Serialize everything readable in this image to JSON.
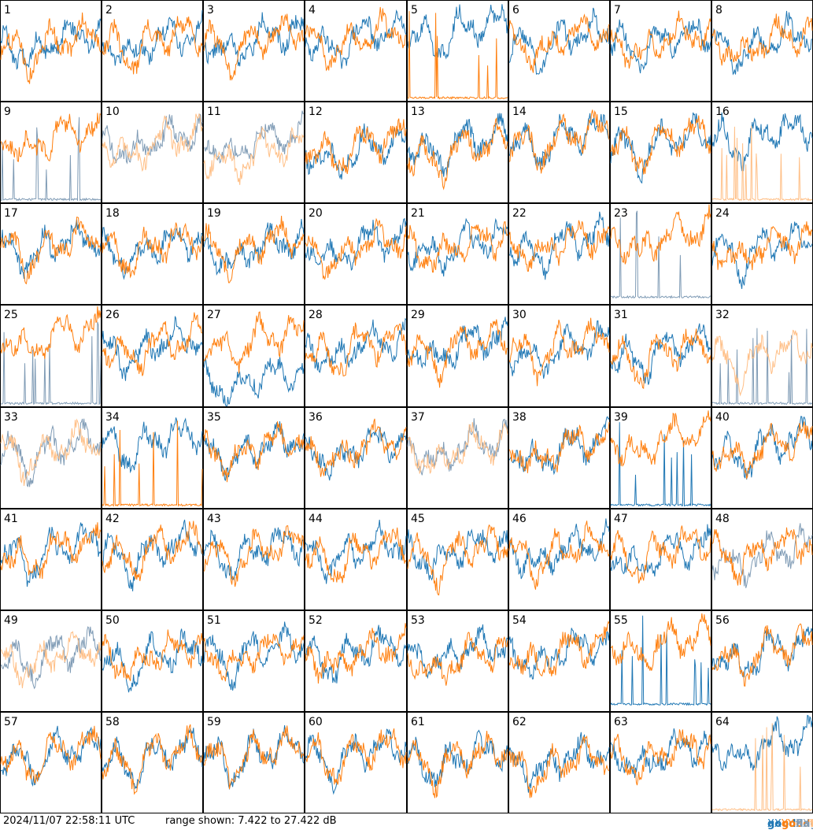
{
  "timestamp": "2024/11/07 22:58:11 UTC",
  "range_text": "range shown: 7.422 to 27.422 dB",
  "legend": [
    {
      "state": "good",
      "pol": "XX",
      "color": "#1f77b4"
    },
    {
      "state": "good",
      "pol": "YY",
      "color": "#ff7f0e"
    },
    {
      "state": "flagged",
      "pol": "XX",
      "color": "#7f9bb5"
    },
    {
      "state": "flagged",
      "pol": "YY",
      "color": "#ffbf86"
    }
  ],
  "chart_data": {
    "type": "line",
    "grid": {
      "rows": 8,
      "cols": 8
    },
    "ylim_db": [
      7.422,
      27.422
    ],
    "series_styles": {
      "good_xx": "#1f77b4",
      "good_yy": "#ff7f0e",
      "flagged_xx": "#7f9bb5",
      "flagged_yy": "#ffbf86"
    },
    "panels": [
      {
        "id": 1,
        "xx": "good",
        "yy": "good",
        "xx_level": 0.62,
        "yy_level": 0.6
      },
      {
        "id": 2,
        "xx": "good",
        "yy": "good",
        "xx_level": 0.62,
        "yy_level": 0.63
      },
      {
        "id": 3,
        "xx": "good",
        "yy": "good",
        "xx_level": 0.64,
        "yy_level": 0.63
      },
      {
        "id": 4,
        "xx": "good",
        "yy": "good",
        "xx_level": 0.66,
        "yy_level": 0.66
      },
      {
        "id": 5,
        "xx": "good",
        "yy": "good",
        "xx_level": 0.74,
        "yy_level": 0.02,
        "yy_spiky": true
      },
      {
        "id": 6,
        "xx": "good",
        "yy": "good",
        "xx_level": 0.64,
        "yy_level": 0.64
      },
      {
        "id": 7,
        "xx": "good",
        "yy": "good",
        "xx_level": 0.63,
        "yy_level": 0.64
      },
      {
        "id": 8,
        "xx": "good",
        "yy": "good",
        "xx_level": 0.62,
        "yy_level": 0.62
      },
      {
        "id": 9,
        "xx": "flagged",
        "yy": "good",
        "xx_level": 0.02,
        "yy_level": 0.68,
        "xx_spiky": true
      },
      {
        "id": 10,
        "xx": "flagged",
        "yy": "flagged",
        "xx_level": 0.65,
        "yy_level": 0.62
      },
      {
        "id": 11,
        "xx": "flagged",
        "yy": "flagged",
        "xx_level": 0.64,
        "yy_level": 0.52
      },
      {
        "id": 12,
        "xx": "good",
        "yy": "good",
        "xx_level": 0.55,
        "yy_level": 0.6
      },
      {
        "id": 13,
        "xx": "good",
        "yy": "good",
        "xx_level": 0.62,
        "yy_level": 0.55
      },
      {
        "id": 14,
        "xx": "good",
        "yy": "good",
        "xx_level": 0.67,
        "yy_level": 0.67
      },
      {
        "id": 15,
        "xx": "good",
        "yy": "good",
        "xx_level": 0.63,
        "yy_level": 0.64
      },
      {
        "id": 16,
        "xx": "good",
        "yy": "flagged",
        "xx_level": 0.7,
        "yy_level": 0.02,
        "yy_spiky": true
      },
      {
        "id": 17,
        "xx": "good",
        "yy": "good",
        "xx_level": 0.62,
        "yy_level": 0.62
      },
      {
        "id": 18,
        "xx": "good",
        "yy": "good",
        "xx_level": 0.6,
        "yy_level": 0.61
      },
      {
        "id": 19,
        "xx": "good",
        "yy": "good",
        "xx_level": 0.58,
        "yy_level": 0.62
      },
      {
        "id": 20,
        "xx": "good",
        "yy": "good",
        "xx_level": 0.62,
        "yy_level": 0.6
      },
      {
        "id": 21,
        "xx": "good",
        "yy": "good",
        "xx_level": 0.62,
        "yy_level": 0.62
      },
      {
        "id": 22,
        "xx": "good",
        "yy": "good",
        "xx_level": 0.63,
        "yy_level": 0.64
      },
      {
        "id": 23,
        "xx": "flagged",
        "yy": "good",
        "xx_level": 0.06,
        "yy_level": 0.7,
        "xx_spiky": true
      },
      {
        "id": 24,
        "xx": "good",
        "yy": "good",
        "xx_level": 0.6,
        "yy_level": 0.6
      },
      {
        "id": 25,
        "xx": "flagged",
        "yy": "good",
        "xx_level": 0.02,
        "yy_level": 0.72,
        "xx_spiky": true
      },
      {
        "id": 26,
        "xx": "good",
        "yy": "good",
        "xx_level": 0.63,
        "yy_level": 0.64
      },
      {
        "id": 27,
        "xx": "good",
        "yy": "good",
        "xx_level": 0.3,
        "yy_level": 0.68
      },
      {
        "id": 28,
        "xx": "good",
        "yy": "good",
        "xx_level": 0.62,
        "yy_level": 0.62
      },
      {
        "id": 29,
        "xx": "good",
        "yy": "good",
        "xx_level": 0.63,
        "yy_level": 0.62
      },
      {
        "id": 30,
        "xx": "good",
        "yy": "good",
        "xx_level": 0.6,
        "yy_level": 0.62
      },
      {
        "id": 31,
        "xx": "good",
        "yy": "good",
        "xx_level": 0.58,
        "yy_level": 0.56
      },
      {
        "id": 32,
        "xx": "flagged",
        "yy": "flagged",
        "xx_level": 0.02,
        "yy_level": 0.55,
        "xx_spiky": true
      },
      {
        "id": 33,
        "xx": "flagged",
        "yy": "flagged",
        "xx_level": 0.62,
        "yy_level": 0.62
      },
      {
        "id": 34,
        "xx": "good",
        "yy": "good",
        "xx_level": 0.7,
        "yy_level": 0.02,
        "yy_spiky": true
      },
      {
        "id": 35,
        "xx": "good",
        "yy": "good",
        "xx_level": 0.62,
        "yy_level": 0.63
      },
      {
        "id": 36,
        "xx": "good",
        "yy": "good",
        "xx_level": 0.62,
        "yy_level": 0.63
      },
      {
        "id": 37,
        "xx": "flagged",
        "yy": "flagged",
        "xx_level": 0.63,
        "yy_level": 0.62
      },
      {
        "id": 38,
        "xx": "good",
        "yy": "good",
        "xx_level": 0.62,
        "yy_level": 0.63
      },
      {
        "id": 39,
        "xx": "good",
        "yy": "good",
        "xx_level": 0.02,
        "yy_level": 0.7,
        "xx_spiky": true
      },
      {
        "id": 40,
        "xx": "good",
        "yy": "good",
        "xx_level": 0.64,
        "yy_level": 0.64
      },
      {
        "id": 41,
        "xx": "good",
        "yy": "good",
        "xx_level": 0.62,
        "yy_level": 0.62
      },
      {
        "id": 42,
        "xx": "good",
        "yy": "good",
        "xx_level": 0.62,
        "yy_level": 0.63
      },
      {
        "id": 43,
        "xx": "good",
        "yy": "good",
        "xx_level": 0.62,
        "yy_level": 0.62
      },
      {
        "id": 44,
        "xx": "good",
        "yy": "good",
        "xx_level": 0.62,
        "yy_level": 0.6
      },
      {
        "id": 45,
        "xx": "good",
        "yy": "good",
        "xx_level": 0.62,
        "yy_level": 0.6
      },
      {
        "id": 46,
        "xx": "good",
        "yy": "good",
        "xx_level": 0.62,
        "yy_level": 0.62
      },
      {
        "id": 47,
        "xx": "good",
        "yy": "good",
        "xx_level": 0.58,
        "yy_level": 0.62
      },
      {
        "id": 48,
        "xx": "flagged",
        "yy": "good",
        "xx_level": 0.58,
        "yy_level": 0.62
      },
      {
        "id": 49,
        "xx": "flagged",
        "yy": "flagged",
        "xx_level": 0.6,
        "yy_level": 0.58
      },
      {
        "id": 50,
        "xx": "good",
        "yy": "good",
        "xx_level": 0.56,
        "yy_level": 0.6
      },
      {
        "id": 51,
        "xx": "good",
        "yy": "good",
        "xx_level": 0.62,
        "yy_level": 0.62
      },
      {
        "id": 52,
        "xx": "good",
        "yy": "good",
        "xx_level": 0.62,
        "yy_level": 0.6
      },
      {
        "id": 53,
        "xx": "good",
        "yy": "good",
        "xx_level": 0.62,
        "yy_level": 0.55
      },
      {
        "id": 54,
        "xx": "good",
        "yy": "good",
        "xx_level": 0.62,
        "yy_level": 0.62
      },
      {
        "id": 55,
        "xx": "good",
        "yy": "good",
        "xx_level": 0.06,
        "yy_level": 0.7,
        "xx_spiky": true
      },
      {
        "id": 56,
        "xx": "good",
        "yy": "good",
        "xx_level": 0.62,
        "yy_level": 0.62
      },
      {
        "id": 57,
        "xx": "good",
        "yy": "good",
        "xx_level": 0.62,
        "yy_level": 0.62
      },
      {
        "id": 58,
        "xx": "good",
        "yy": "good",
        "xx_level": 0.6,
        "yy_level": 0.6
      },
      {
        "id": 59,
        "xx": "good",
        "yy": "good",
        "xx_level": 0.62,
        "yy_level": 0.62
      },
      {
        "id": 60,
        "xx": "good",
        "yy": "good",
        "xx_level": 0.63,
        "yy_level": 0.63
      },
      {
        "id": 61,
        "xx": "good",
        "yy": "good",
        "xx_level": 0.58,
        "yy_level": 0.58
      },
      {
        "id": 62,
        "xx": "good",
        "yy": "good",
        "xx_level": 0.56,
        "yy_level": 0.52
      },
      {
        "id": 63,
        "xx": "good",
        "yy": "good",
        "xx_level": 0.62,
        "yy_level": 0.62
      },
      {
        "id": 64,
        "xx": "good",
        "yy": "flagged",
        "xx_level": 0.7,
        "yy_level": 0.02,
        "yy_spiky": true
      }
    ]
  }
}
